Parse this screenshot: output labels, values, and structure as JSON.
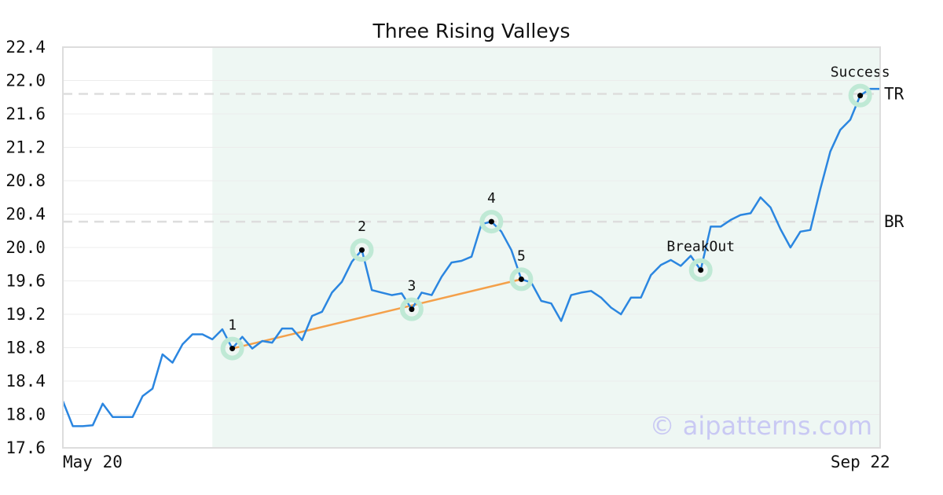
{
  "chart_data": {
    "type": "line",
    "title": "Three Rising Valleys",
    "xlabel": "",
    "ylabel": "",
    "ylim": [
      17.6,
      22.4
    ],
    "yticks": [
      "22.4",
      "22.0",
      "21.6",
      "21.2",
      "20.8",
      "20.4",
      "20.0",
      "19.6",
      "19.2",
      "18.8",
      "18.4",
      "18.0",
      "17.6"
    ],
    "xticks": [
      {
        "label": "May 20",
        "index": 0
      },
      {
        "label": "Sep 22",
        "index": 83
      }
    ],
    "grid": true,
    "colors": {
      "price": "#2b86e0",
      "trendline": "#f4a04a",
      "pattern_zone": "#eef7f3",
      "marker_halo": "#bfe9d5",
      "level_line": "#dddddd",
      "frame": "#dddddd"
    },
    "pattern_zone": {
      "start_index": 15,
      "end_index": 82
    },
    "series": [
      {
        "values": [
          18.16,
          17.86,
          17.86,
          17.87,
          18.13,
          17.97,
          17.97,
          17.97,
          18.22,
          18.31,
          18.72,
          18.62,
          18.84,
          18.96,
          18.96,
          18.9,
          19.02,
          18.79,
          18.93,
          18.79,
          18.88,
          18.86,
          19.03,
          19.03,
          18.89,
          19.18,
          19.23,
          19.46,
          19.59,
          19.83,
          19.97,
          19.49,
          19.46,
          19.43,
          19.45,
          19.26,
          19.46,
          19.43,
          19.65,
          19.82,
          19.84,
          19.89,
          20.28,
          20.31,
          20.19,
          19.97,
          19.62,
          19.58,
          19.36,
          19.33,
          19.12,
          19.43,
          19.46,
          19.48,
          19.4,
          19.28,
          19.2,
          19.4,
          19.4,
          19.67,
          19.79,
          19.85,
          19.78,
          19.9,
          19.73,
          20.25,
          20.25,
          20.33,
          20.39,
          20.41,
          20.6,
          20.48,
          20.22,
          20.0,
          20.19,
          20.21,
          20.7,
          21.15,
          21.41,
          21.53,
          21.82,
          21.9,
          21.9
        ]
      }
    ],
    "levels": [
      {
        "label": "TR",
        "value": 21.84
      },
      {
        "label": "BR",
        "value": 20.31
      }
    ],
    "points": [
      {
        "label": "1",
        "index": 17,
        "value": 18.79
      },
      {
        "label": "2",
        "index": 30,
        "value": 19.97
      },
      {
        "label": "3",
        "index": 35,
        "value": 19.26
      },
      {
        "label": "4",
        "index": 43,
        "value": 20.31
      },
      {
        "label": "5",
        "index": 46,
        "value": 19.62
      },
      {
        "label": "BreakOut",
        "index": 64,
        "value": 19.73
      },
      {
        "label": "Success",
        "index": 80,
        "value": 21.82
      }
    ],
    "trendline": {
      "from_index": 17,
      "from_value": 18.79,
      "to_index": 46,
      "to_value": 19.62
    },
    "watermark": "© aipatterns.com"
  }
}
